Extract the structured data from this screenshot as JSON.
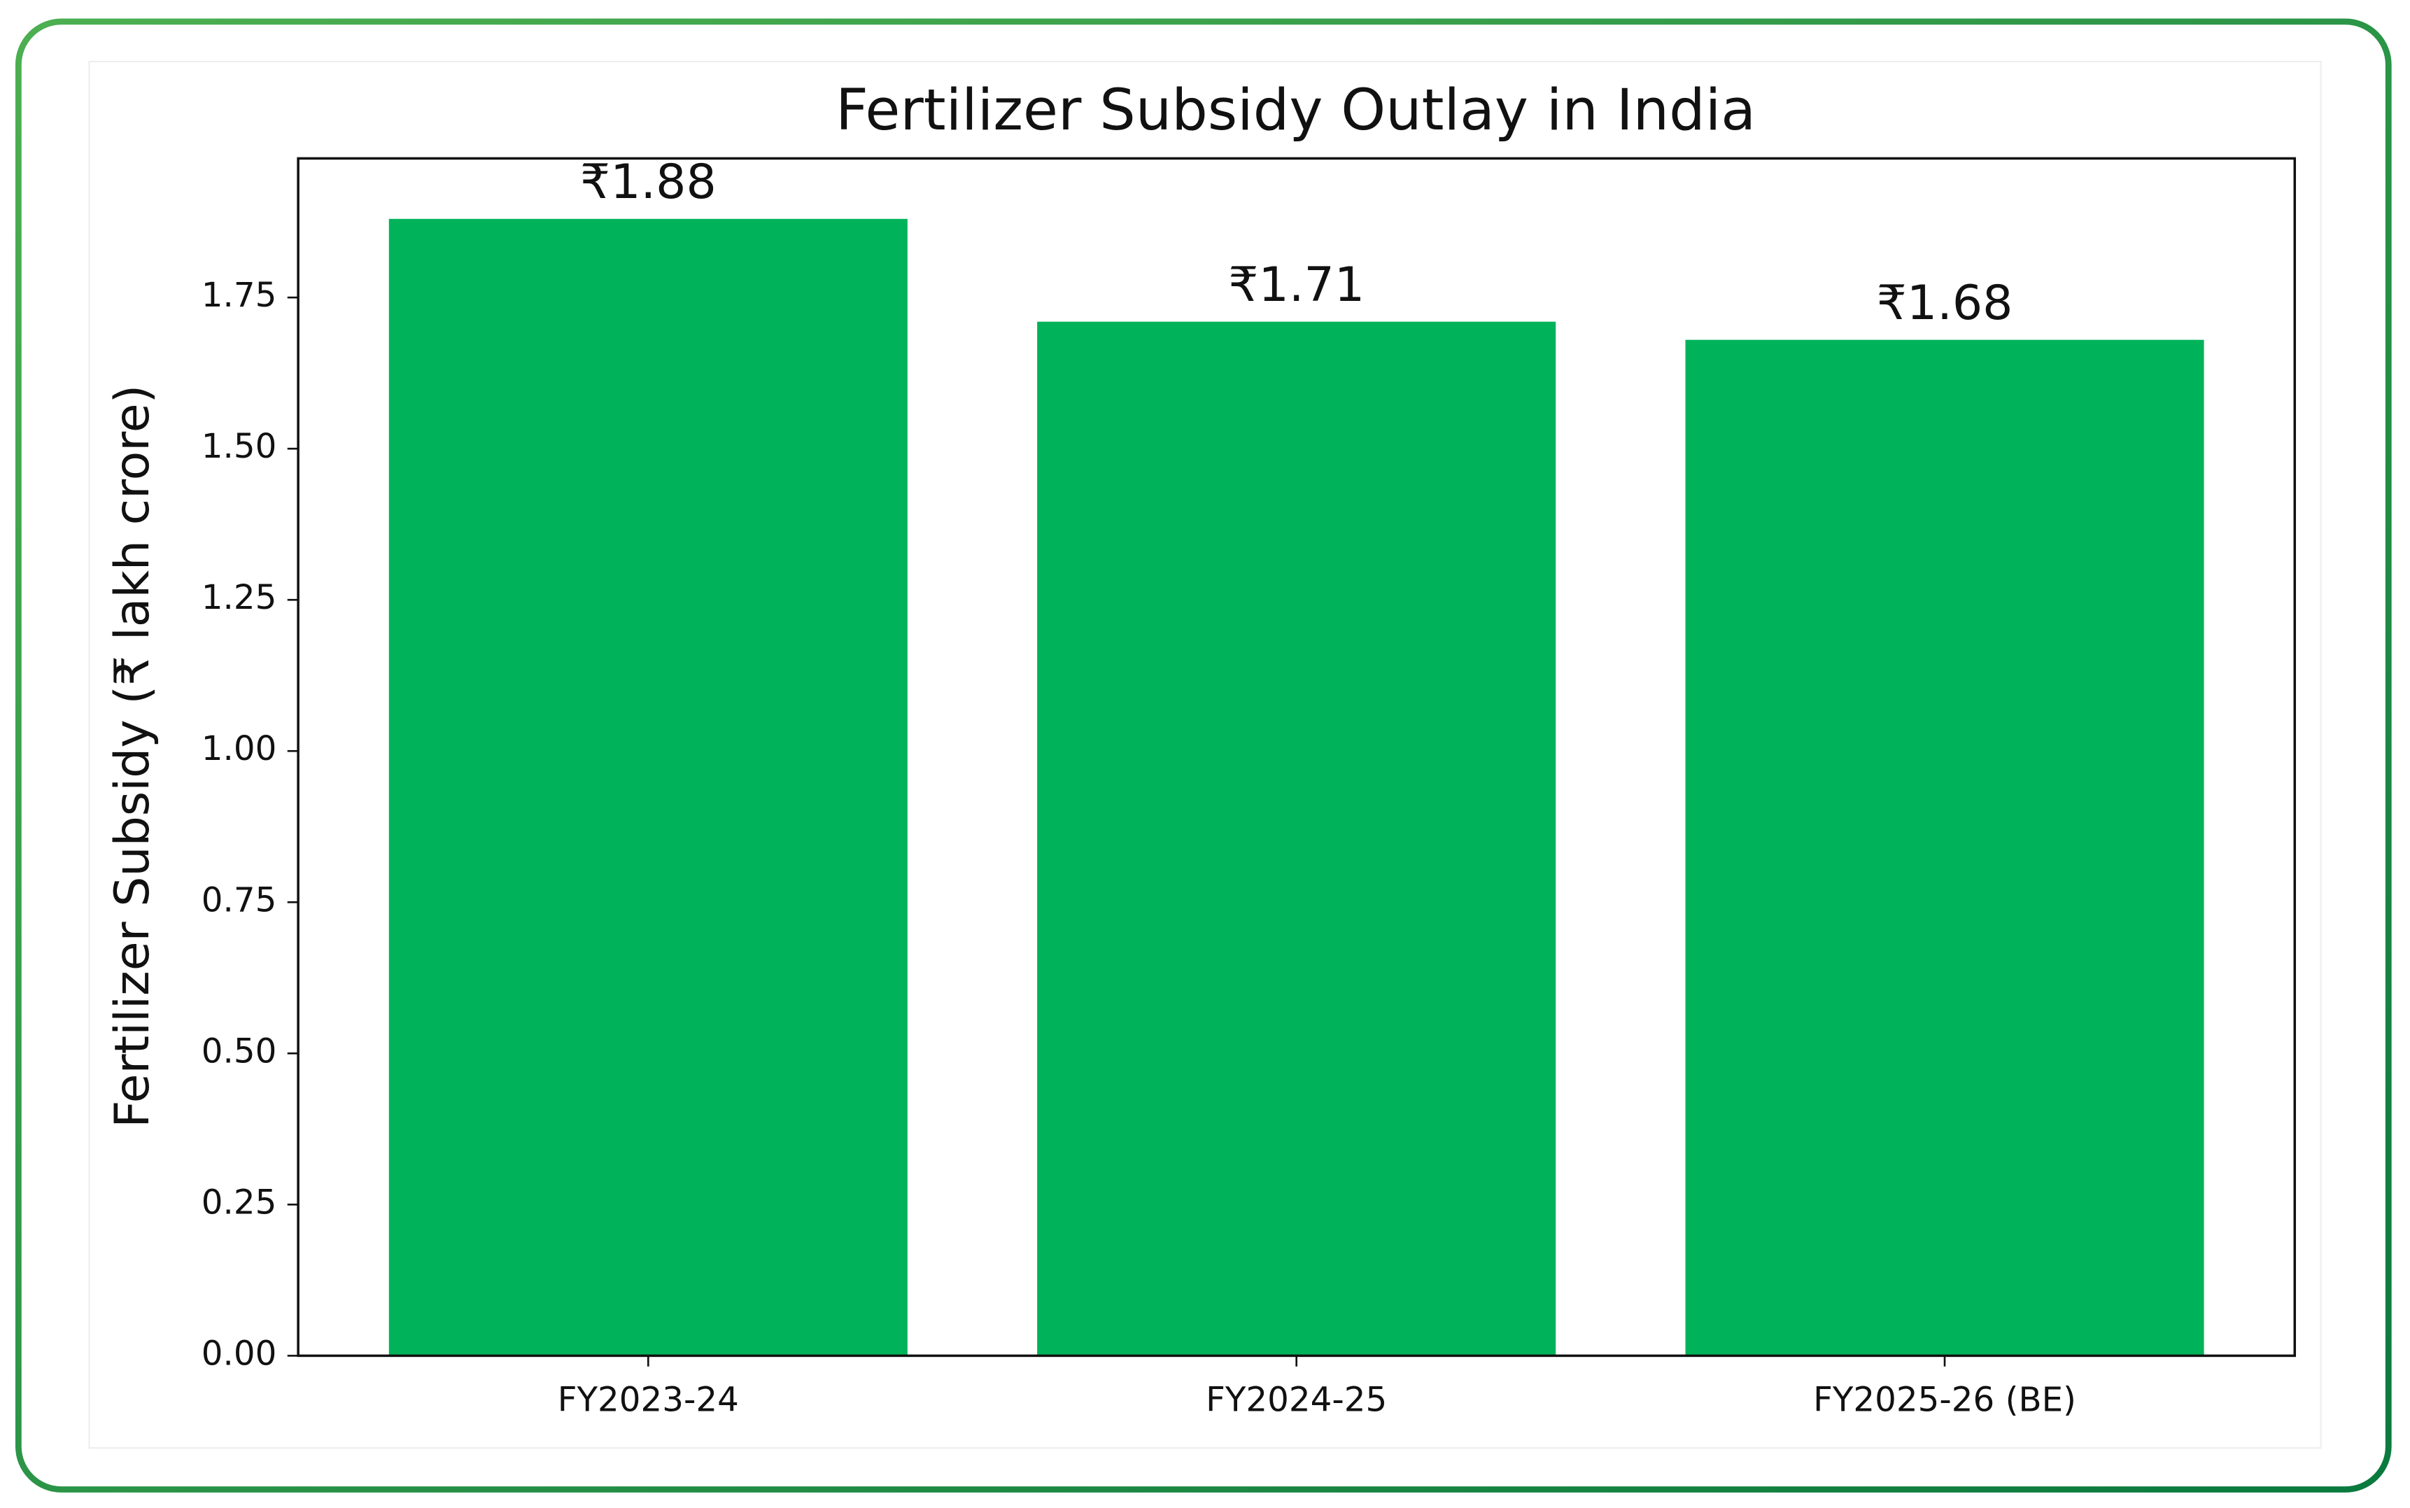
{
  "chart_data": {
    "type": "bar",
    "title": "Fertilizer Subsidy Outlay in India",
    "y_label": "Fertilizer Subsidy (₹ lakh crore)",
    "categories": [
      "FY2023-24",
      "FY2024-25",
      "FY2025-26 (BE)"
    ],
    "values": [
      1.88,
      1.71,
      1.68
    ],
    "value_labels": [
      "₹1.88",
      "₹1.71",
      "₹1.68"
    ],
    "color": "#00b35a",
    "ylim": [
      0,
      1.98
    ],
    "yticks": [
      {
        "value": 0,
        "label": "0.00"
      },
      {
        "value": 0.25,
        "label": "0.25"
      },
      {
        "value": 0.5,
        "label": "0.50"
      },
      {
        "value": 0.75,
        "label": "0.75"
      },
      {
        "value": 1,
        "label": "1.00"
      },
      {
        "value": 1.25,
        "label": "1.25"
      },
      {
        "value": 1.5,
        "label": "1.50"
      },
      {
        "value": 1.75,
        "label": "1.75"
      }
    ],
    "grid": false
  }
}
